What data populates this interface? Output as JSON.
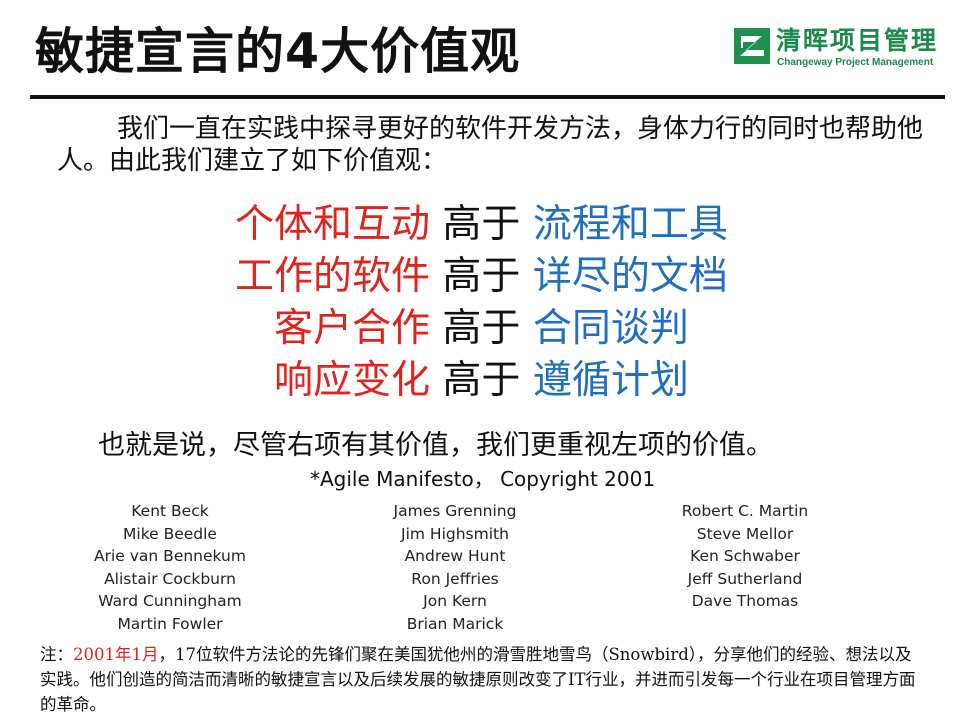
{
  "title": "敏捷宣言的4大价值观",
  "logo": {
    "cn": "清晖项目管理",
    "en": "Changeway Project Management",
    "icon": "changeway-logo-icon",
    "color": "#1a8a4a"
  },
  "intro": "我们一直在实践中探寻更好的软件开发方法，身体力行的同时也帮助他人。由此我们建立了如下价值观：",
  "values": [
    {
      "left": "个体和互动",
      "mid": "高于",
      "right": "流程和工具"
    },
    {
      "left": "工作的软件",
      "mid": "高于",
      "right": "详尽的文档"
    },
    {
      "left": "客户合作",
      "mid": "高于",
      "right": "合同谈判"
    },
    {
      "left": "响应变化",
      "mid": "高于",
      "right": "遵循计划"
    }
  ],
  "summary": "也就是说，尽管右项有其价值，我们更重视左项的价值。",
  "copyright": "*Agile Manifesto，  Copyright 2001",
  "names": {
    "col1": [
      "Kent Beck",
      "Mike Beedle",
      "Arie van Bennekum",
      "Alistair Cockburn",
      "Ward Cunningham",
      "Martin Fowler"
    ],
    "col2": [
      "James Grenning",
      "Jim Highsmith",
      "Andrew Hunt",
      "Ron Jeffries",
      "Jon Kern",
      "Brian Marick"
    ],
    "col3": [
      "Robert C. Martin",
      "Steve Mellor",
      "Ken Schwaber",
      "Jeff Sutherland",
      "Dave Thomas"
    ]
  },
  "note": {
    "prefix": "注：",
    "date": "2001年1月",
    "text": "，17位软件方法论的先锋们聚在美国犹他州的滑雪胜地雪鸟（Snowbird），分享他们的经验、想法以及实践。他们创造的简洁而清晰的敏捷宣言以及后续发展的敏捷原则改变了IT行业，并进而引发每一个行业在项目管理方面的革命。"
  },
  "colors": {
    "left_value": "#e0231c",
    "right_value": "#1f6fbe",
    "brand": "#1a8a4a"
  }
}
